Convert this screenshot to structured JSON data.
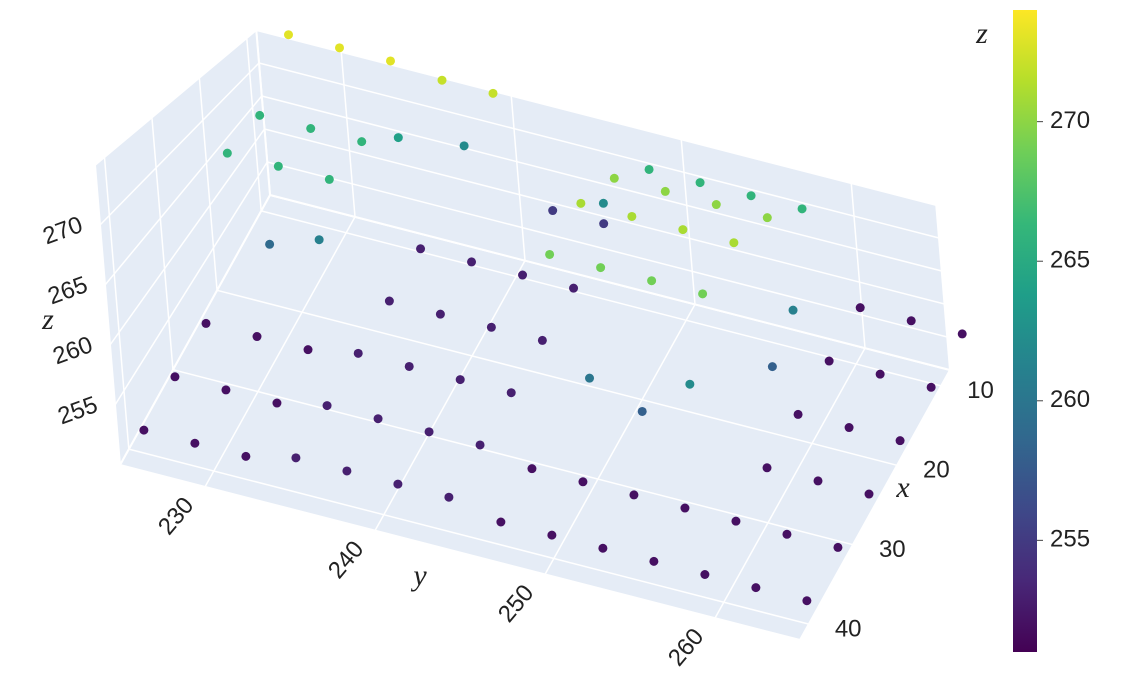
{
  "chart_data": {
    "type": "scatter3d",
    "xlabel": "x",
    "ylabel": "y",
    "zlabel": "z",
    "xlim": [
      8,
      42
    ],
    "ylim": [
      225,
      265
    ],
    "zlim": [
      250,
      275
    ],
    "xticks": [
      10,
      20,
      30,
      40
    ],
    "yticks": [
      230,
      240,
      250,
      260
    ],
    "zticks": [
      255,
      260,
      265,
      270
    ],
    "grid": true,
    "colorscale": [
      "#440154",
      "#482878",
      "#3e4989",
      "#31688e",
      "#26828e",
      "#1f9e89",
      "#35b779",
      "#6ece58",
      "#b5de2b",
      "#fde725"
    ],
    "colorbar": {
      "title": "z",
      "cmin": 251,
      "cmax": 274,
      "ticks": [
        255,
        260,
        265,
        270
      ]
    },
    "x": [
      5,
      12,
      19,
      26,
      33,
      40,
      5,
      12,
      19,
      26,
      33,
      40,
      5,
      12,
      19,
      26,
      33,
      40,
      5,
      12,
      19,
      26,
      33,
      40,
      5,
      12,
      19,
      26,
      33,
      40,
      5,
      12,
      19,
      26,
      33,
      40,
      5,
      12,
      19,
      26,
      33,
      40,
      5,
      12,
      19,
      26,
      33,
      40,
      5,
      12,
      19,
      26,
      33,
      40,
      5,
      12,
      19,
      26,
      33,
      40,
      5,
      12,
      19,
      26,
      33,
      40,
      5,
      12,
      19,
      26,
      33,
      40,
      5,
      12,
      19,
      26,
      33,
      40,
      5,
      12,
      19,
      26,
      33,
      40,
      22,
      22,
      8,
      5,
      30,
      30,
      30,
      15,
      20,
      8
    ],
    "y": [
      226,
      226,
      226,
      226,
      226,
      226,
      229,
      229,
      229,
      229,
      229,
      229,
      232,
      232,
      232,
      232,
      232,
      232,
      235,
      235,
      235,
      235,
      235,
      235,
      238,
      238,
      238,
      238,
      238,
      238,
      241,
      241,
      241,
      241,
      241,
      241,
      244,
      244,
      244,
      244,
      244,
      244,
      247,
      247,
      247,
      247,
      247,
      247,
      250,
      250,
      250,
      250,
      250,
      250,
      253,
      253,
      253,
      253,
      253,
      253,
      256,
      256,
      256,
      256,
      256,
      256,
      259,
      259,
      259,
      259,
      259,
      259,
      262,
      262,
      262,
      262,
      262,
      262,
      265,
      265,
      265,
      265,
      265,
      265,
      229,
      232,
      233,
      236,
      250,
      253,
      256,
      258,
      258,
      245
    ],
    "z": [
      273,
      266,
      266,
      252,
      252,
      252,
      273,
      266,
      266,
      252,
      252,
      252,
      273,
      266,
      266,
      252,
      252,
      252,
      272,
      253,
      253,
      253,
      253,
      253,
      272,
      253,
      253,
      253,
      253,
      253,
      255,
      253,
      253,
      253,
      253,
      253,
      255,
      253,
      253,
      253,
      253,
      253,
      266,
      270,
      271,
      269,
      252,
      252,
      266,
      270,
      271,
      269,
      252,
      252,
      266,
      270,
      271,
      269,
      252,
      252,
      266,
      270,
      271,
      269,
      252,
      252,
      252,
      252,
      252,
      252,
      252,
      252,
      252,
      252,
      252,
      252,
      252,
      252,
      252,
      252,
      252,
      252,
      252,
      252,
      259,
      261,
      264,
      262,
      260,
      258,
      262,
      261,
      258,
      262
    ]
  }
}
